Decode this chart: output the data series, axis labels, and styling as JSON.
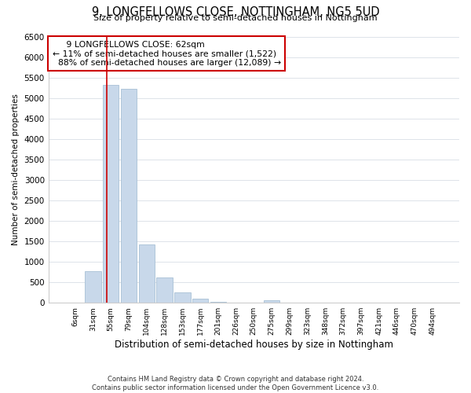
{
  "title": "9, LONGFELLOWS CLOSE, NOTTINGHAM, NG5 5UD",
  "subtitle": "Size of property relative to semi-detached houses in Nottingham",
  "xlabel": "Distribution of semi-detached houses by size in Nottingham",
  "ylabel": "Number of semi-detached properties",
  "footer_line1": "Contains HM Land Registry data © Crown copyright and database right 2024.",
  "footer_line2": "Contains public sector information licensed under the Open Government Licence v3.0.",
  "bar_labels": [
    "6sqm",
    "31sqm",
    "55sqm",
    "79sqm",
    "104sqm",
    "128sqm",
    "153sqm",
    "177sqm",
    "201sqm",
    "226sqm",
    "250sqm",
    "275sqm",
    "299sqm",
    "323sqm",
    "348sqm",
    "372sqm",
    "397sqm",
    "421sqm",
    "446sqm",
    "470sqm",
    "494sqm"
  ],
  "bar_values": [
    0,
    780,
    5320,
    5220,
    1420,
    610,
    260,
    100,
    30,
    0,
    0,
    60,
    0,
    0,
    0,
    0,
    0,
    0,
    0,
    0,
    0
  ],
  "property_label": "9 LONGFELLOWS CLOSE: 62sqm",
  "pct_smaller": 11,
  "n_smaller": 1522,
  "pct_larger": 88,
  "n_larger": 12089,
  "vline_pos": 1.79,
  "bar_color": "#c8d8ea",
  "bar_edge_color": "#a8c0d6",
  "vline_color": "#cc0000",
  "annotation_box_edge": "#cc0000",
  "ylim": [
    0,
    6500
  ],
  "yticks": [
    0,
    500,
    1000,
    1500,
    2000,
    2500,
    3000,
    3500,
    4000,
    4500,
    5000,
    5500,
    6000,
    6500
  ],
  "background_color": "#ffffff",
  "grid_color": "#d0d8e0"
}
